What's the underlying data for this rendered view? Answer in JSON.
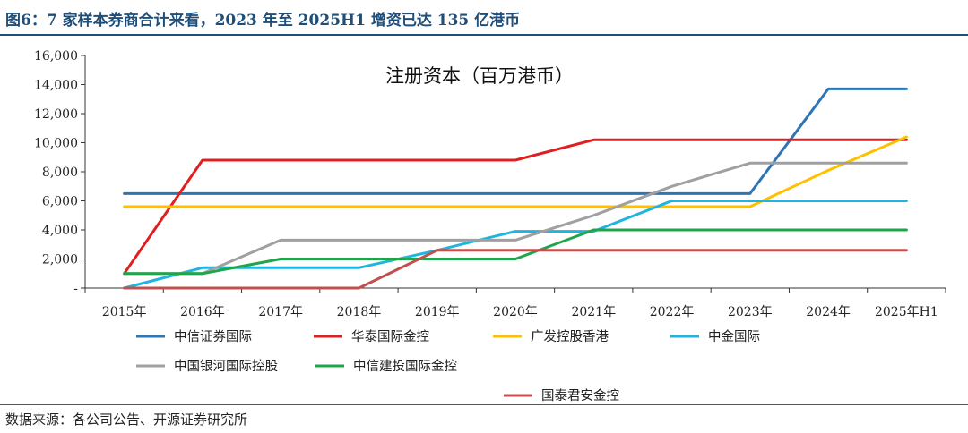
{
  "header": {
    "title": "图6：7 家样本券商合计来看，2023 年至 2025H1 增资已达 135 亿港币",
    "color": "#1f4e79"
  },
  "footer": {
    "source": "数据来源：各公司公告、开源证券研究所"
  },
  "chart_data": {
    "type": "line",
    "title": "注册资本（百万港币）",
    "xlabel": "",
    "ylabel": "",
    "categories": [
      "2015年",
      "2016年",
      "2017年",
      "2018年",
      "2019年",
      "2020年",
      "2021年",
      "2022年",
      "2023年",
      "2024年",
      "2025年H1"
    ],
    "ylim": [
      0,
      16000
    ],
    "yticks": [
      0,
      2000,
      4000,
      6000,
      8000,
      10000,
      12000,
      14000,
      16000
    ],
    "ytick_labels": [
      "-",
      "2,000",
      "4,000",
      "6,000",
      "8,000",
      "10,000",
      "12,000",
      "14,000",
      "16,000"
    ],
    "grid": false,
    "legend_position": "bottom",
    "series": [
      {
        "name": "中信证券国际",
        "color": "#2e75b6",
        "values": [
          6500,
          6500,
          6500,
          6500,
          6500,
          6500,
          6500,
          6500,
          6500,
          13700,
          13700
        ]
      },
      {
        "name": "华泰国际金控",
        "color": "#e02020",
        "values": [
          1000,
          8800,
          8800,
          8800,
          8800,
          8800,
          10200,
          10200,
          10200,
          10200,
          10200
        ]
      },
      {
        "name": "广发控股香港",
        "color": "#ffc000",
        "values": [
          5600,
          5600,
          5600,
          5600,
          5600,
          5600,
          5600,
          5600,
          5600,
          8100,
          10400
        ]
      },
      {
        "name": "中金国际",
        "color": "#1fb5e0",
        "values": [
          0,
          1400,
          1400,
          1400,
          2600,
          3900,
          3900,
          6000,
          6000,
          6000,
          6000
        ]
      },
      {
        "name": "中国银河国际控股",
        "color": "#a0a0a0",
        "values": [
          1000,
          1000,
          3300,
          3300,
          3300,
          3300,
          5000,
          7000,
          8600,
          8600,
          8600
        ]
      },
      {
        "name": "中信建投国际金控",
        "color": "#1fa64a",
        "values": [
          1000,
          1000,
          2000,
          2000,
          2000,
          2000,
          4000,
          4000,
          4000,
          4000,
          4000
        ]
      },
      {
        "name": "国泰君安金控",
        "color": "#c0504d",
        "values": [
          0,
          0,
          0,
          0,
          2600,
          2600,
          2600,
          2600,
          2600,
          2600,
          2600
        ]
      }
    ]
  }
}
